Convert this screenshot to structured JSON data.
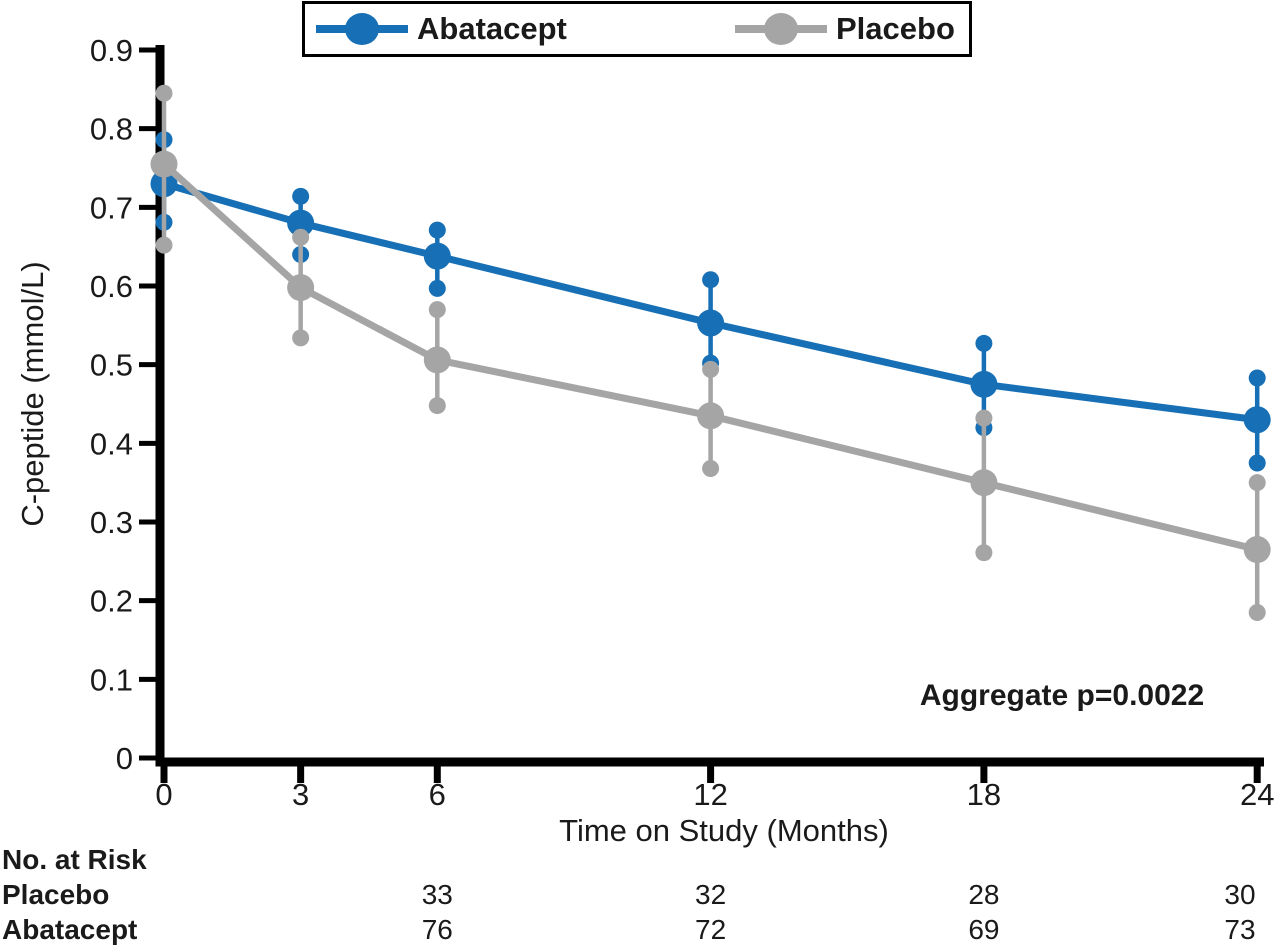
{
  "figure": {
    "background": "#ffffff",
    "text_color": "#1a1a1a",
    "axis_color": "#000000"
  },
  "chart_data": {
    "type": "line",
    "title": "",
    "xlabel": "Time on Study (Months)",
    "ylabel": "C-peptide (mmol/L)",
    "xlim": [
      0,
      24
    ],
    "ylim": [
      0,
      0.9
    ],
    "grid": "off",
    "legend_position": "top",
    "annotation": "Aggregate p=0.0022",
    "x_ticks": [
      {
        "v": 0,
        "label": "0"
      },
      {
        "v": 3,
        "label": "3"
      },
      {
        "v": 6,
        "label": "6"
      },
      {
        "v": 12,
        "label": "12"
      },
      {
        "v": 18,
        "label": "18"
      },
      {
        "v": 24,
        "label": "24"
      }
    ],
    "y_ticks": [
      {
        "v": 0.0,
        "label": "0"
      },
      {
        "v": 0.1,
        "label": "0.1"
      },
      {
        "v": 0.2,
        "label": "0.2"
      },
      {
        "v": 0.3,
        "label": "0.3"
      },
      {
        "v": 0.4,
        "label": "0.4"
      },
      {
        "v": 0.5,
        "label": "0.5"
      },
      {
        "v": 0.6,
        "label": "0.6"
      },
      {
        "v": 0.7,
        "label": "0.7"
      },
      {
        "v": 0.8,
        "label": "0.8"
      },
      {
        "v": 0.9,
        "label": "0.9"
      }
    ],
    "series": [
      {
        "name": "Abatacept",
        "color": "#176fb5",
        "x": [
          0,
          3,
          6,
          12,
          18,
          24
        ],
        "mean": [
          0.73,
          0.68,
          0.638,
          0.553,
          0.475,
          0.43
        ],
        "lower": [
          0.681,
          0.64,
          0.597,
          0.502,
          0.42,
          0.375
        ],
        "upper": [
          0.786,
          0.714,
          0.671,
          0.608,
          0.527,
          0.483
        ]
      },
      {
        "name": "Placebo",
        "color": "#a5a5a5",
        "x": [
          0,
          3,
          6,
          12,
          18,
          24
        ],
        "mean": [
          0.755,
          0.598,
          0.506,
          0.435,
          0.35,
          0.265
        ],
        "lower": [
          0.652,
          0.534,
          0.448,
          0.368,
          0.261,
          0.185
        ],
        "upper": [
          0.845,
          0.662,
          0.57,
          0.494,
          0.432,
          0.35
        ]
      }
    ]
  },
  "risk_table": {
    "title": "No. at Risk",
    "months": [
      6,
      12,
      18,
      24
    ],
    "rows": [
      {
        "label": "Placebo",
        "values": [
          33,
          32,
          28,
          30
        ]
      },
      {
        "label": "Abatacept",
        "values": [
          76,
          72,
          69,
          73
        ]
      }
    ]
  }
}
